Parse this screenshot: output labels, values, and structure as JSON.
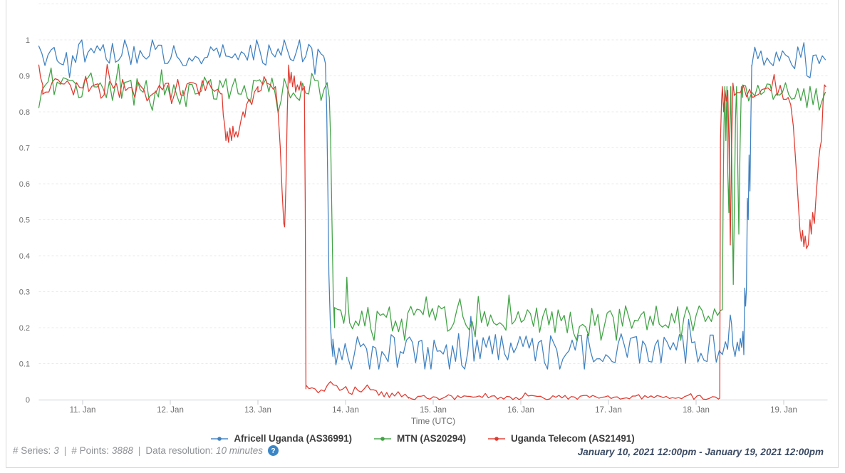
{
  "footer": {
    "series_label": "# Series:",
    "series_value": "3",
    "points_label": "# Points:",
    "points_value": "3888",
    "resolution_label": "Data resolution:",
    "resolution_value": "10 minutes",
    "sep1": "|",
    "sep2": "|",
    "help_glyph": "?",
    "help_color": "#3b86c6",
    "date_range": "January 10, 2021 12:00pm - January 19, 2021 12:00pm"
  },
  "chart_data": {
    "type": "line",
    "title": "",
    "xlabel": "Time (UTC)",
    "ylabel": "",
    "x_unit": "days since January 10, 2021 12:00pm UTC",
    "x_range": [
      0,
      9
    ],
    "ylim": [
      0,
      1.1
    ],
    "grid": "horizontal dashed, every 0.1",
    "legend_position": "bottom center",
    "sample_step_days": 0.035,
    "x_ticks": [
      {
        "t": 0.5,
        "label": "11. Jan"
      },
      {
        "t": 1.5,
        "label": "12. Jan"
      },
      {
        "t": 2.5,
        "label": "13. Jan"
      },
      {
        "t": 3.5,
        "label": "14. Jan"
      },
      {
        "t": 4.5,
        "label": "15. Jan"
      },
      {
        "t": 5.5,
        "label": "16. Jan"
      },
      {
        "t": 6.5,
        "label": "17. Jan"
      },
      {
        "t": 7.5,
        "label": "18. Jan"
      },
      {
        "t": 8.5,
        "label": "19. Jan"
      }
    ],
    "y_ticks": [
      {
        "v": 0,
        "label": "0"
      },
      {
        "v": 0.1,
        "label": "0.1"
      },
      {
        "v": 0.2,
        "label": "0.2"
      },
      {
        "v": 0.3,
        "label": "0.3"
      },
      {
        "v": 0.4,
        "label": "0.4"
      },
      {
        "v": 0.5,
        "label": "0.5"
      },
      {
        "v": 0.6,
        "label": "0.6"
      },
      {
        "v": 0.7,
        "label": "0.7"
      },
      {
        "v": 0.8,
        "label": "0.8"
      },
      {
        "v": 0.9,
        "label": "0.9"
      },
      {
        "v": 1,
        "label": "1"
      }
    ],
    "grid_values": [
      0.1,
      0.2,
      0.3,
      0.4,
      0.5,
      0.6,
      0.7,
      0.8,
      0.9,
      1.0,
      1.1
    ],
    "series": [
      {
        "name": "Africell Uganda (AS36991)",
        "slug": "africell-uganda-as36991",
        "color": "#3f81c1",
        "segments": [
          {
            "kind": "noise",
            "t0": 0,
            "t1": 3.25,
            "base": 0.958,
            "amp": 0.03,
            "max": 1.0,
            "seed": 11
          },
          {
            "kind": "path",
            "pts": [
              [
                3.25,
                0.955
              ],
              [
                3.27,
                0.935
              ],
              [
                3.285,
                0.8
              ],
              [
                3.3,
                0.55
              ],
              [
                3.31,
                0.35
              ],
              [
                3.325,
                0.22
              ],
              [
                3.34,
                0.155
              ],
              [
                3.355,
                0.12
              ]
            ]
          },
          {
            "kind": "noise",
            "t0": 3.355,
            "t1": 7.86,
            "base": 0.142,
            "amp": 0.042,
            "min": 0.085,
            "seed": 12
          },
          {
            "kind": "path",
            "pts": [
              [
                7.86,
                0.14
              ],
              [
                7.875,
                0.19
              ],
              [
                7.89,
                0.235
              ],
              [
                7.905,
                0.21
              ],
              [
                7.92,
                0.15
              ],
              [
                7.945,
                0.12
              ],
              [
                7.97,
                0.16
              ],
              [
                7.99,
                0.135
              ],
              [
                8.005,
                0.17
              ],
              [
                8.02,
                0.145
              ],
              [
                8.035,
                0.19
              ],
              [
                8.045,
                0.125
              ],
              [
                8.055,
                0.31
              ],
              [
                8.065,
                0.26
              ],
              [
                8.075,
                0.31
              ],
              [
                8.085,
                0.56
              ],
              [
                8.095,
                0.5
              ],
              [
                8.105,
                0.68
              ],
              [
                8.115,
                0.58
              ],
              [
                8.125,
                0.78
              ],
              [
                8.135,
                0.93
              ]
            ]
          },
          {
            "kind": "noise",
            "t0": 8.135,
            "t1": 8.98,
            "base": 0.953,
            "amp": 0.028,
            "max": 1.0,
            "seed": 13
          }
        ]
      },
      {
        "name": "MTN (AS20294)",
        "slug": "mtn-as20294",
        "color": "#40a344",
        "segments": [
          {
            "kind": "noise",
            "t0": 0,
            "t1": 3.295,
            "base": 0.863,
            "amp": 0.032,
            "seed": 21
          },
          {
            "kind": "path",
            "pts": [
              [
                3.295,
                0.87
              ],
              [
                3.315,
                0.84
              ],
              [
                3.33,
                0.72
              ],
              [
                3.345,
                0.5
              ],
              [
                3.36,
                0.28
              ],
              [
                3.375,
                0.2
              ]
            ]
          },
          {
            "kind": "noise",
            "t0": 3.375,
            "t1": 3.5,
            "base": 0.23,
            "amp": 0.03,
            "seed": 22
          },
          {
            "kind": "path",
            "pts": [
              [
                3.5,
                0.245
              ],
              [
                3.515,
                0.34
              ],
              [
                3.53,
                0.26
              ],
              [
                3.545,
                0.22
              ]
            ]
          },
          {
            "kind": "noise",
            "t0": 3.545,
            "t1": 7.8,
            "base": 0.224,
            "amp": 0.038,
            "min": 0.165,
            "seed": 23
          },
          {
            "kind": "path",
            "pts": [
              [
                7.8,
                0.25
              ],
              [
                7.808,
                0.55
              ],
              [
                7.818,
                0.76
              ],
              [
                7.828,
                0.87
              ],
              [
                7.84,
                0.72
              ],
              [
                7.852,
                0.87
              ],
              [
                7.862,
                0.63
              ],
              [
                7.874,
                0.52
              ],
              [
                7.886,
                0.76
              ],
              [
                7.896,
                0.87
              ],
              [
                7.91,
                0.6
              ],
              [
                7.924,
                0.32
              ],
              [
                7.938,
                0.56
              ],
              [
                7.95,
                0.78
              ],
              [
                7.962,
                0.87
              ],
              [
                7.975,
                0.66
              ],
              [
                7.988,
                0.46
              ],
              [
                8.002,
                0.7
              ],
              [
                8.016,
                0.87
              ],
              [
                8.03,
                0.84
              ]
            ]
          },
          {
            "kind": "noise",
            "t0": 8.03,
            "t1": 8.98,
            "base": 0.856,
            "amp": 0.026,
            "seed": 24
          }
        ]
      },
      {
        "name": "Uganda Telecom (AS21491)",
        "slug": "uganda-telecom-as21491",
        "color": "#df3a30",
        "segments": [
          {
            "kind": "path",
            "pts": [
              [
                0,
                0.93
              ],
              [
                0.02,
                0.895
              ],
              [
                0.045,
                0.875
              ]
            ]
          },
          {
            "kind": "noise",
            "t0": 0.045,
            "t1": 2.09,
            "base": 0.872,
            "amp": 0.027,
            "seed": 31
          },
          {
            "kind": "path",
            "pts": [
              [
                2.09,
                0.85
              ],
              [
                2.105,
                0.79
              ],
              [
                2.12,
                0.765
              ],
              [
                2.135,
                0.72
              ],
              [
                2.15,
                0.745
              ],
              [
                2.165,
                0.715
              ],
              [
                2.18,
                0.755
              ],
              [
                2.2,
                0.72
              ],
              [
                2.215,
                0.76
              ],
              [
                2.23,
                0.73
              ],
              [
                2.25,
                0.745
              ],
              [
                2.27,
                0.73
              ],
              [
                2.29,
                0.755
              ],
              [
                2.31,
                0.78
              ],
              [
                2.33,
                0.8
              ],
              [
                2.35,
                0.785
              ],
              [
                2.37,
                0.82
              ],
              [
                2.4,
                0.835
              ],
              [
                2.43,
                0.82
              ],
              [
                2.46,
                0.855
              ],
              [
                2.5,
                0.87
              ]
            ]
          },
          {
            "kind": "noise",
            "t0": 2.5,
            "t1": 2.7,
            "base": 0.862,
            "amp": 0.022,
            "seed": 32
          },
          {
            "kind": "path",
            "pts": [
              [
                2.7,
                0.87
              ],
              [
                2.73,
                0.8
              ],
              [
                2.755,
                0.7
              ],
              [
                2.775,
                0.585
              ],
              [
                2.795,
                0.49
              ],
              [
                2.805,
                0.48
              ],
              [
                2.82,
                0.6
              ],
              [
                2.835,
                0.8
              ],
              [
                2.85,
                0.93
              ],
              [
                2.865,
                0.88
              ],
              [
                2.88,
                0.91
              ],
              [
                2.895,
                0.87
              ],
              [
                2.915,
                0.9
              ],
              [
                2.93,
                0.855
              ],
              [
                2.95,
                0.875
              ],
              [
                2.97,
                0.86
              ],
              [
                2.99,
                0.885
              ],
              [
                3.01,
                0.86
              ],
              [
                3.03,
                0.87
              ]
            ]
          },
          {
            "kind": "path",
            "pts": [
              [
                3.03,
                0.87
              ],
              [
                3.04,
                0.55
              ],
              [
                3.048,
                0.03
              ]
            ]
          },
          {
            "kind": "noise",
            "t0": 3.048,
            "t1": 3.85,
            "base": 0.03,
            "amp": 0.012,
            "min": 0.012,
            "seed": 33
          },
          {
            "kind": "path",
            "pts": [
              [
                3.85,
                0.025
              ],
              [
                3.88,
                0.012
              ],
              [
                3.91,
                0.022
              ],
              [
                3.94,
                0.008
              ],
              [
                3.97,
                0.02
              ],
              [
                4.0,
                0.006
              ],
              [
                4.03,
                0.018
              ],
              [
                4.06,
                0.01
              ],
              [
                4.1,
                0.022
              ],
              [
                4.14,
                0.008
              ],
              [
                4.18,
                0.015
              ],
              [
                4.22,
                0.004
              ]
            ]
          },
          {
            "kind": "noise",
            "t0": 4.22,
            "t1": 7.77,
            "base": 0.006,
            "amp": 0.006,
            "min": 0,
            "seed": 34
          },
          {
            "kind": "path",
            "pts": [
              [
                7.77,
                0.004
              ],
              [
                7.778,
                0.72
              ],
              [
                7.79,
                0.83
              ],
              [
                7.8,
                0.87
              ],
              [
                7.815,
                0.8
              ],
              [
                7.83,
                0.86
              ],
              [
                7.845,
                0.83
              ],
              [
                7.862,
                0.86
              ],
              [
                7.876,
                0.7
              ],
              [
                7.89,
                0.43
              ],
              [
                7.905,
                0.7
              ],
              [
                7.92,
                0.88
              ],
              [
                7.935,
                0.85
              ]
            ]
          },
          {
            "kind": "noise",
            "t0": 7.935,
            "t1": 8.55,
            "base": 0.855,
            "amp": 0.022,
            "seed": 35
          },
          {
            "kind": "path",
            "pts": [
              [
                8.55,
                0.84
              ],
              [
                8.58,
                0.82
              ],
              [
                8.61,
                0.76
              ],
              [
                8.64,
                0.65
              ],
              [
                8.665,
                0.55
              ],
              [
                8.685,
                0.47
              ],
              [
                8.7,
                0.44
              ],
              [
                8.715,
                0.47
              ],
              [
                8.73,
                0.425
              ],
              [
                8.745,
                0.455
              ],
              [
                8.76,
                0.42
              ],
              [
                8.78,
                0.43
              ],
              [
                8.8,
                0.5
              ],
              [
                8.815,
                0.46
              ],
              [
                8.83,
                0.52
              ],
              [
                8.85,
                0.49
              ],
              [
                8.865,
                0.55
              ],
              [
                8.885,
                0.62
              ],
              [
                8.9,
                0.67
              ],
              [
                8.915,
                0.7
              ],
              [
                8.93,
                0.72
              ],
              [
                8.95,
                0.83
              ],
              [
                8.965,
                0.875
              ],
              [
                8.98,
                0.87
              ]
            ]
          }
        ]
      }
    ]
  }
}
